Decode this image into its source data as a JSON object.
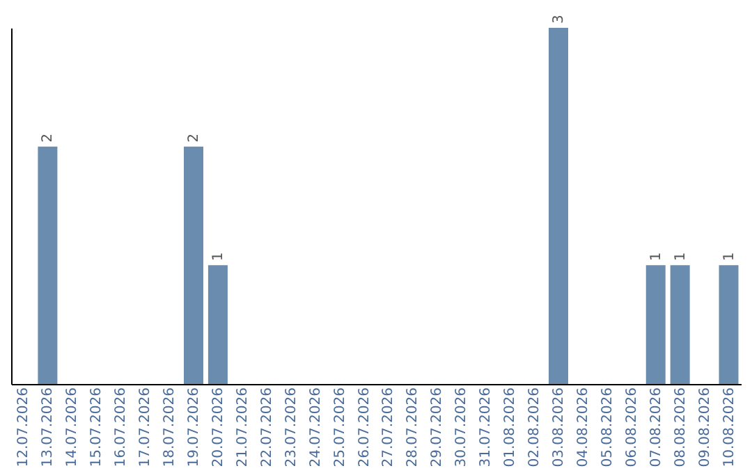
{
  "chart_data": {
    "type": "bar",
    "categories": [
      "12.07.2026",
      "13.07.2026",
      "14.07.2026",
      "15.07.2026",
      "16.07.2026",
      "17.07.2026",
      "18.07.2026",
      "19.07.2026",
      "20.07.2026",
      "21.07.2026",
      "22.07.2026",
      "23.07.2026",
      "24.07.2026",
      "25.07.2026",
      "26.07.2026",
      "27.07.2026",
      "28.07.2026",
      "29.07.2026",
      "30.07.2026",
      "31.07.2026",
      "01.08.2026",
      "02.08.2026",
      "03.08.2026",
      "04.08.2026",
      "05.08.2026",
      "06.08.2026",
      "07.08.2026",
      "08.08.2026",
      "09.08.2026",
      "10.08.2026"
    ],
    "values": [
      null,
      2,
      null,
      null,
      null,
      null,
      null,
      2,
      1,
      null,
      null,
      null,
      null,
      null,
      null,
      null,
      null,
      null,
      null,
      null,
      null,
      null,
      3,
      null,
      null,
      null,
      1,
      1,
      null,
      1
    ],
    "color": "#6a8caf",
    "data_labels": true,
    "tick_labels": "x",
    "grid": false
  }
}
